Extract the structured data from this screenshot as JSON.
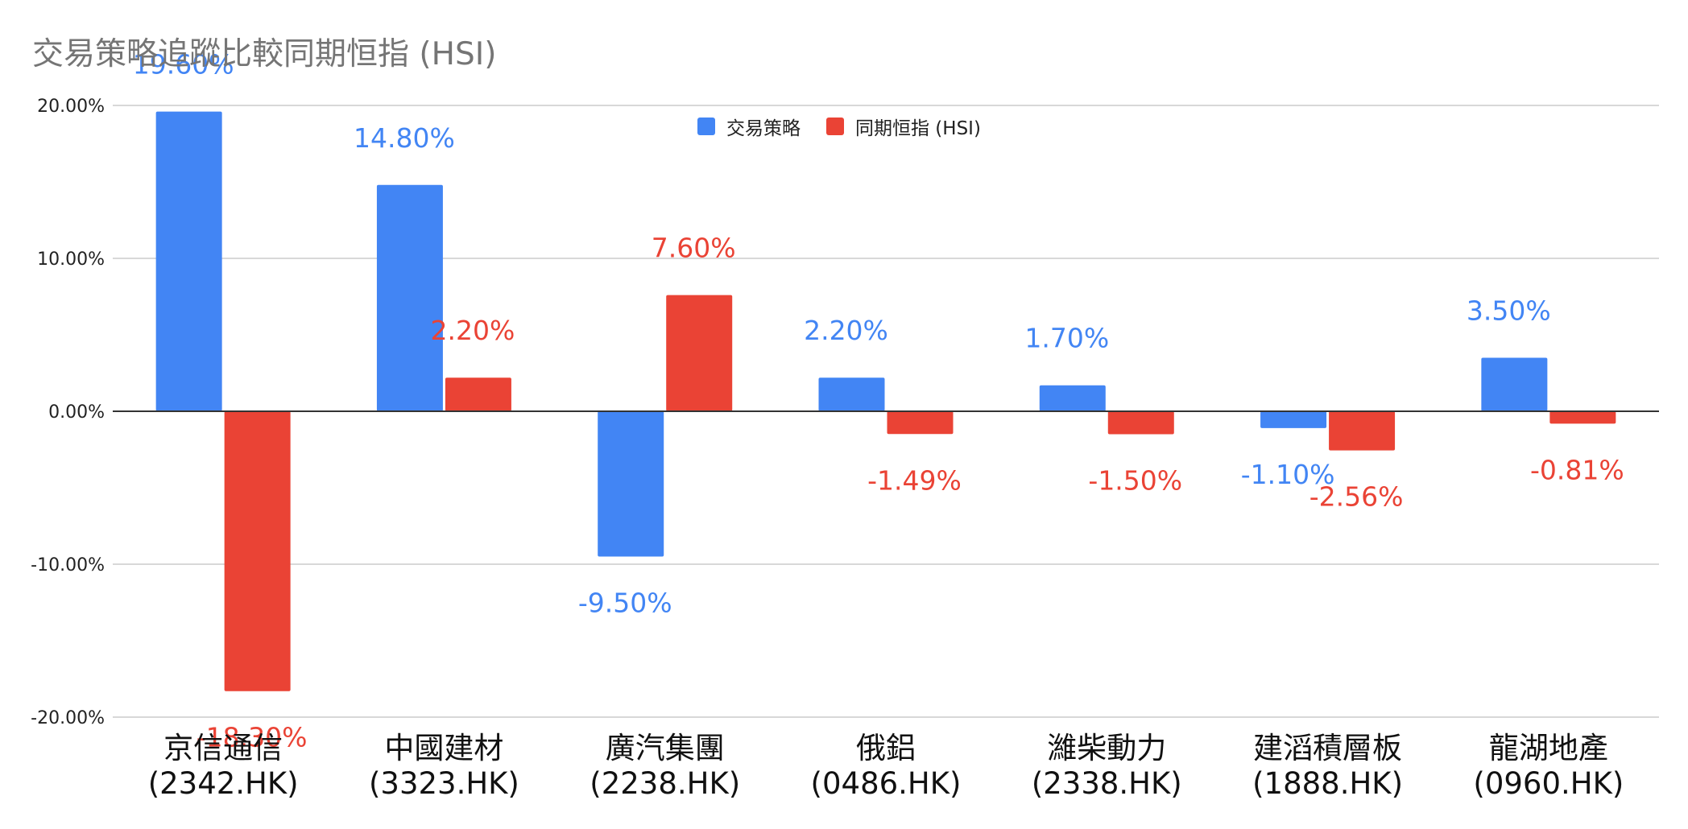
{
  "chart_data": {
    "type": "bar",
    "title": "交易策略追蹤比較同期恒指 (HSI)",
    "xlabel": "",
    "ylabel": "",
    "ylim": [
      -20,
      20
    ],
    "y_ticks": [
      20,
      10,
      0,
      -10,
      -20
    ],
    "y_tick_labels": [
      "20.00%",
      "10.00%",
      "0.00%",
      "-10.00%",
      "-20.00%"
    ],
    "grid": true,
    "legend_position": "top-center",
    "categories": [
      [
        "京信通信",
        "(2342.HK)"
      ],
      [
        "中國建材",
        "(3323.HK)"
      ],
      [
        "廣汽集團",
        "(2238.HK)"
      ],
      [
        "俄鋁",
        "(0486.HK)"
      ],
      [
        "濰柴動力",
        "(2338.HK)"
      ],
      [
        "建滔積層板",
        "(1888.HK)"
      ],
      [
        "龍湖地產",
        "(0960.HK)"
      ]
    ],
    "series": [
      {
        "name": "交易策略",
        "color": "#4285F4",
        "values": [
          19.6,
          14.8,
          -9.5,
          2.2,
          1.7,
          -1.1,
          3.5
        ],
        "labels": [
          "19.60%",
          "14.80%",
          "-9.50%",
          "2.20%",
          "1.70%",
          "-1.10%",
          "3.50%"
        ]
      },
      {
        "name": "同期恒指 (HSI)",
        "color": "#EA4335",
        "values": [
          -18.3,
          2.2,
          7.6,
          -1.49,
          -1.5,
          -2.56,
          -0.81
        ],
        "labels": [
          "-18.30%",
          "2.20%",
          "7.60%",
          "-1.49%",
          "-1.50%",
          "-2.56%",
          "-0.81%"
        ]
      }
    ]
  }
}
